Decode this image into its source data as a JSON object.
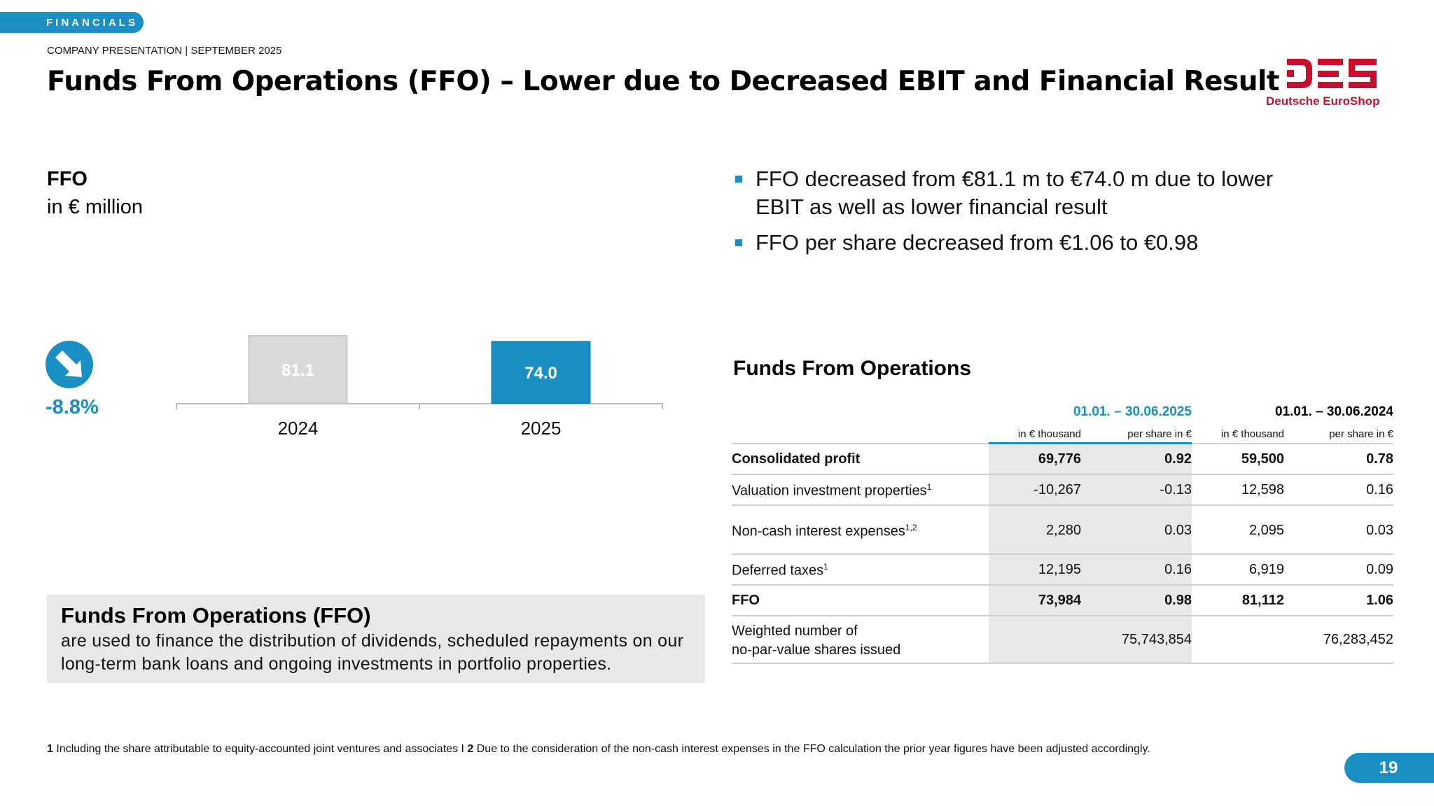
{
  "header": {
    "section_tag": "FINANCIALS",
    "subheader": "COMPANY PRESENTATION | SEPTEMBER 2025",
    "title": "Funds From Operations (FFO) – Lower due to Decreased EBIT and Financial Result"
  },
  "logo": {
    "mark": "DES",
    "name": "Deutsche EuroShop",
    "color": "#c8102e"
  },
  "colors": {
    "accent": "#1a8fc4",
    "bar_prior": "#d9d9d9",
    "bar_current": "#1a8fc4",
    "panel": "#e8e8e8"
  },
  "chart_section": {
    "heading": "FFO",
    "unit": "in € million",
    "trend_icon": "arrow-down-right-icon",
    "change": "-8.8%"
  },
  "chart_data": {
    "type": "bar",
    "categories": [
      "2024",
      "2025"
    ],
    "values": [
      81.1,
      74.0
    ],
    "value_labels": [
      "81.1",
      "74.0"
    ],
    "title": "FFO",
    "ylabel": "in € million",
    "ylim": [
      0,
      81.1
    ],
    "grid": false,
    "legend": "none"
  },
  "bullets": [
    "FFO decreased from €81.1 m to €74.0 m due to lower EBIT as well as lower financial result",
    "FFO per share decreased from €1.06 to €0.98"
  ],
  "info_box": {
    "title": "Funds From Operations (FFO)",
    "text": "are used to finance the distribution of dividends, scheduled repayments on our long-term bank loans and ongoing investments in portfolio properties."
  },
  "table": {
    "title": "Funds From Operations",
    "periods": [
      "01.01. – 30.06.2025",
      "01.01. – 30.06.2024"
    ],
    "units": [
      "in € thousand",
      "per share in €",
      "in € thousand",
      "per share in €"
    ],
    "rows": [
      {
        "label": "Consolidated profit",
        "sup": "",
        "values": [
          "69,776",
          "0.92",
          "59,500",
          "0.78"
        ],
        "bold": true
      },
      {
        "label": "Valuation investment properties",
        "sup": "1",
        "values": [
          "-10,267",
          "-0.13",
          "12,598",
          "0.16"
        ],
        "bold": false
      },
      {
        "label": "Non-cash interest expenses",
        "sup": "1,2",
        "values": [
          "2,280",
          "0.03",
          "2,095",
          "0.03"
        ],
        "bold": false
      },
      {
        "label": "Deferred taxes",
        "sup": "1",
        "values": [
          "12,195",
          "0.16",
          "6,919",
          "0.09"
        ],
        "bold": false
      },
      {
        "label": "FFO",
        "sup": "",
        "values": [
          "73,984",
          "0.98",
          "81,112",
          "1.06"
        ],
        "bold": true
      },
      {
        "label_line1": "Weighted number of",
        "label_line2": "no-par-value shares issued",
        "values": [
          "75,743,854",
          "76,283,452"
        ]
      }
    ]
  },
  "footnote": {
    "n1": "1",
    "t1": " Including the share attributable to equity-accounted joint ventures and associates I ",
    "n2": "2",
    "t2": " Due to the consideration of the non-cash interest expenses in the FFO calculation the prior year figures have been adjusted accordingly."
  },
  "page_number": "19"
}
